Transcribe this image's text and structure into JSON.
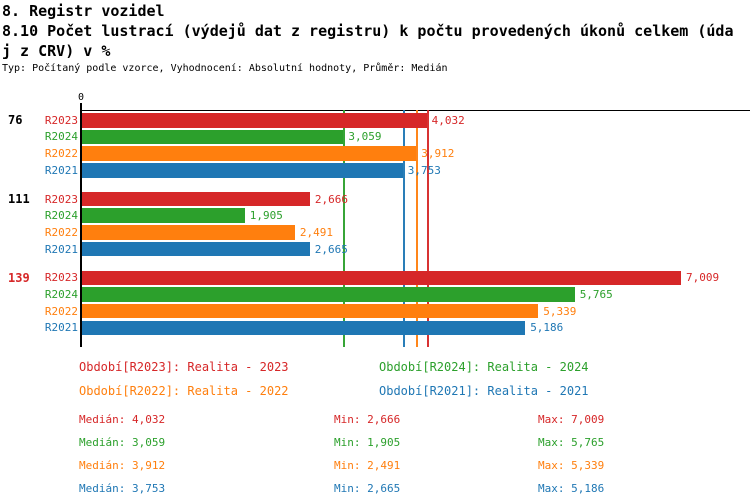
{
  "header": {
    "title": "8. Registr vozidel",
    "subtitle_line1": "8.10 Počet lustrací (výdejů dat z registru) k počtu provedených úkonů celkem (úda",
    "subtitle_line2": "j z CRV) v %",
    "meta": "Typ: Počítaný podle vzorce, Vyhodnocení: Absolutní hodnoty, Průměr: Medián"
  },
  "chart_data": {
    "type": "bar",
    "orientation": "horizontal",
    "title": "8.10 Počet lustrací (výdejů dat z registru) k počtu provedených úkonů celkem (údaj z CRV) v %",
    "x_axis": {
      "origin_label": "0",
      "xlim": [
        0,
        7816
      ],
      "grid": false
    },
    "categories": [
      "76",
      "111",
      "139"
    ],
    "category_colors": [
      "#000000",
      "#000000",
      "#d62728"
    ],
    "series": [
      {
        "name": "R2023",
        "color": "#d62728",
        "values": [
          4032,
          2666,
          7009
        ],
        "median": 4032,
        "min": 2666,
        "max": 7009
      },
      {
        "name": "R2024",
        "color": "#2ca02c",
        "values": [
          3059,
          1905,
          5765
        ],
        "median": 3059,
        "min": 1905,
        "max": 5765
      },
      {
        "name": "R2022",
        "color": "#ff7f0e",
        "values": [
          3912,
          2491,
          5339
        ],
        "median": 3912,
        "min": 2491,
        "max": 5339
      },
      {
        "name": "R2021",
        "color": "#1f77b4",
        "values": [
          3753,
          2665,
          5186
        ],
        "median": 3753,
        "min": 2665,
        "max": 5186
      }
    ],
    "median_lines_shown": true,
    "value_labels_shown": true,
    "legend_position": "bottom"
  },
  "legend": {
    "items": [
      {
        "label": "Období[R2023]: Realita - 2023",
        "color": "#d62728"
      },
      {
        "label": "Období[R2024]: Realita - 2024",
        "color": "#2ca02c"
      },
      {
        "label": "Období[R2022]: Realita - 2022",
        "color": "#ff7f0e"
      },
      {
        "label": "Období[R2021]: Realita - 2021",
        "color": "#1f77b4"
      }
    ]
  },
  "stats": {
    "median_label": "Medián",
    "min_label": "Min",
    "max_label": "Max",
    "rows": [
      {
        "median": "4,032",
        "min": "2,666",
        "max": "7,009",
        "color": "#d62728"
      },
      {
        "median": "3,059",
        "min": "1,905",
        "max": "5,765",
        "color": "#2ca02c"
      },
      {
        "median": "3,912",
        "min": "2,491",
        "max": "5,339",
        "color": "#ff7f0e"
      },
      {
        "median": "3,753",
        "min": "2,665",
        "max": "5,186",
        "color": "#1f77b4"
      }
    ]
  }
}
